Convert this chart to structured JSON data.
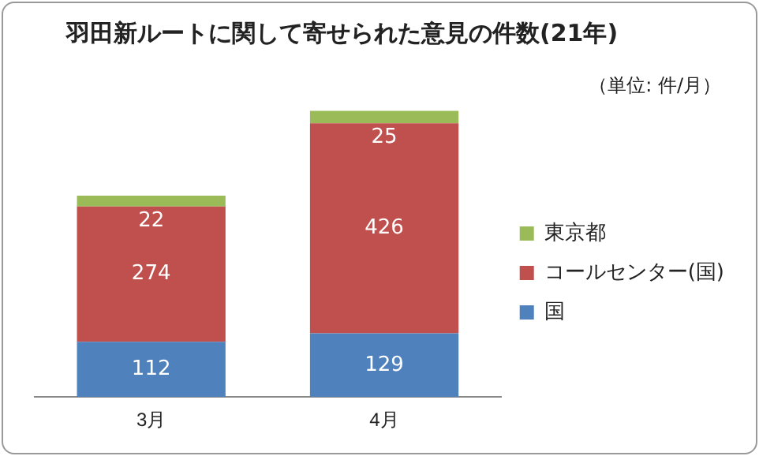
{
  "chart_data": {
    "type": "bar",
    "title": "羽田新ルートに関して寄せられた意見の件数(21年)",
    "annotations": [
      "（単位: 件/月）"
    ],
    "categories": [
      "3月",
      "4月"
    ],
    "stacked": true,
    "data_labels": true,
    "legend": "right",
    "grid": false,
    "series": [
      {
        "name": "国",
        "color": "#4f81bd",
        "values": [
          112,
          129
        ]
      },
      {
        "name": "コールセンター(国)",
        "color": "#c0504d",
        "values": [
          274,
          426
        ]
      },
      {
        "name": "東京都",
        "color": "#9bbb59",
        "values": [
          22,
          25
        ]
      }
    ]
  }
}
